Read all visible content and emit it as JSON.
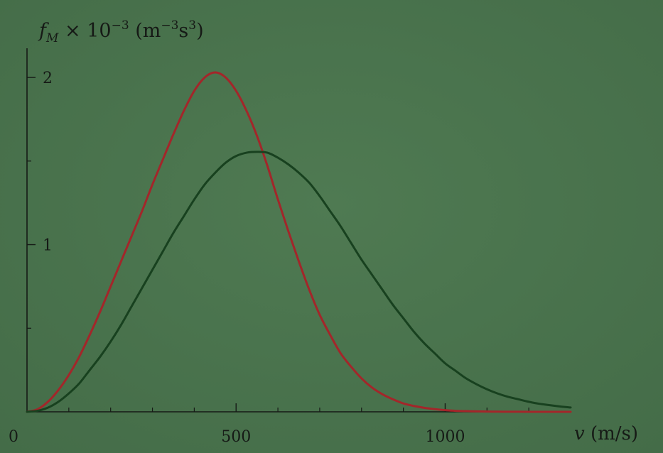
{
  "chart_data": {
    "type": "line",
    "ylabel": {
      "symbol": "f",
      "symbol_sub": "M",
      "scale_text": " × 10",
      "scale_exp": "−3",
      "unit_open": " (m",
      "unit_exp1": "−3",
      "unit_mid": "s",
      "unit_exp2": "3",
      "unit_close": ")"
    },
    "xlabel": {
      "symbol": "v",
      "unit": " (m/s)"
    },
    "xlim": [
      0,
      1300
    ],
    "ylim": [
      0,
      2.2
    ],
    "x_ticks": [
      0,
      500,
      1000
    ],
    "x_tick_labels": [
      "0",
      "500",
      "1000"
    ],
    "y_ticks": [
      1,
      2
    ],
    "y_tick_labels": [
      "1",
      "2"
    ],
    "x_minor_ticks": [
      100,
      200,
      300,
      400,
      600,
      700,
      800,
      900,
      1100,
      1200
    ],
    "y_minor_ticks": [
      0.5,
      1.5
    ],
    "grid": false,
    "series": [
      {
        "color": "#a3262a",
        "x": [
          0,
          25,
          50,
          75,
          100,
          125,
          150,
          175,
          200,
          225,
          250,
          275,
          300,
          325,
          350,
          375,
          400,
          425,
          450,
          475,
          500,
          525,
          550,
          575,
          600,
          625,
          650,
          675,
          700,
          725,
          750,
          775,
          800,
          825,
          850,
          875,
          900,
          925,
          950,
          975,
          1000,
          1025,
          1050,
          1075,
          1100,
          1125,
          1150,
          1175,
          1200,
          1225,
          1250,
          1275,
          1300
        ],
        "y": [
          0,
          0.015,
          0.06,
          0.13,
          0.22,
          0.33,
          0.46,
          0.6,
          0.75,
          0.9,
          1.05,
          1.2,
          1.36,
          1.51,
          1.66,
          1.8,
          1.92,
          2.0,
          2.03,
          2.0,
          1.92,
          1.8,
          1.65,
          1.47,
          1.27,
          1.08,
          0.9,
          0.73,
          0.58,
          0.46,
          0.35,
          0.27,
          0.2,
          0.145,
          0.105,
          0.075,
          0.05,
          0.035,
          0.024,
          0.016,
          0.01,
          0.006,
          0.004,
          0.0025,
          0.0015,
          0.001,
          0.0006,
          0.0004,
          0.0002,
          0.0001,
          5e-05,
          2e-05,
          1e-05
        ]
      },
      {
        "color": "#18411f",
        "x": [
          0,
          25,
          50,
          75,
          100,
          125,
          150,
          175,
          200,
          225,
          250,
          275,
          300,
          325,
          350,
          375,
          400,
          425,
          450,
          475,
          500,
          525,
          550,
          575,
          600,
          625,
          650,
          675,
          700,
          725,
          750,
          775,
          800,
          825,
          850,
          875,
          900,
          925,
          950,
          975,
          1000,
          1025,
          1050,
          1075,
          1100,
          1125,
          1150,
          1175,
          1200,
          1225,
          1250,
          1275,
          1300
        ],
        "y": [
          0,
          0.006,
          0.025,
          0.06,
          0.11,
          0.17,
          0.25,
          0.33,
          0.42,
          0.52,
          0.63,
          0.74,
          0.85,
          0.96,
          1.07,
          1.17,
          1.27,
          1.36,
          1.43,
          1.49,
          1.53,
          1.55,
          1.555,
          1.55,
          1.52,
          1.48,
          1.43,
          1.37,
          1.29,
          1.2,
          1.11,
          1.01,
          0.91,
          0.82,
          0.73,
          0.64,
          0.56,
          0.48,
          0.41,
          0.35,
          0.29,
          0.245,
          0.2,
          0.165,
          0.135,
          0.11,
          0.09,
          0.075,
          0.06,
          0.048,
          0.04,
          0.032,
          0.026
        ]
      }
    ]
  }
}
